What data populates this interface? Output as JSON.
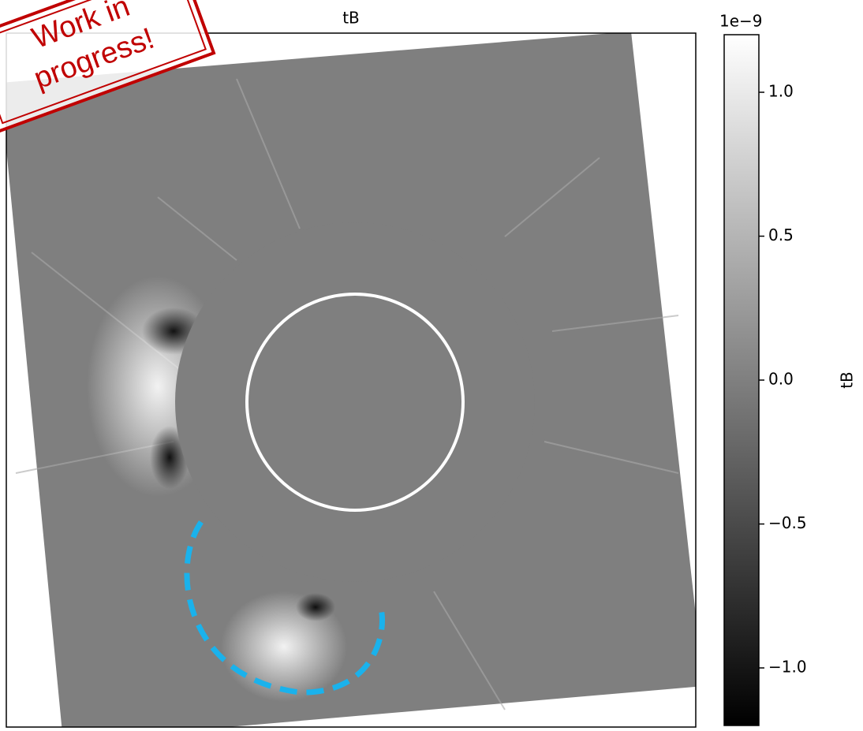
{
  "chart_data": {
    "type": "image",
    "title": "tB",
    "colorbar": {
      "label": "tB",
      "offset_text": "1e−9",
      "ylim": [
        -1.2,
        1.2
      ],
      "yticks": [
        {
          "value": 1,
          "label": "1.0"
        },
        {
          "value": 0.5,
          "label": "0.5"
        },
        {
          "value": 0,
          "label": "0.0"
        },
        {
          "value": -0.5,
          "label": "−0.5"
        },
        {
          "value": -1,
          "label": "−1.0"
        }
      ],
      "colors": [
        "#000000",
        "#ffffff"
      ]
    }
  },
  "stamp": {
    "lines": [
      "Work in",
      "progress!"
    ],
    "color": "#c00000"
  }
}
